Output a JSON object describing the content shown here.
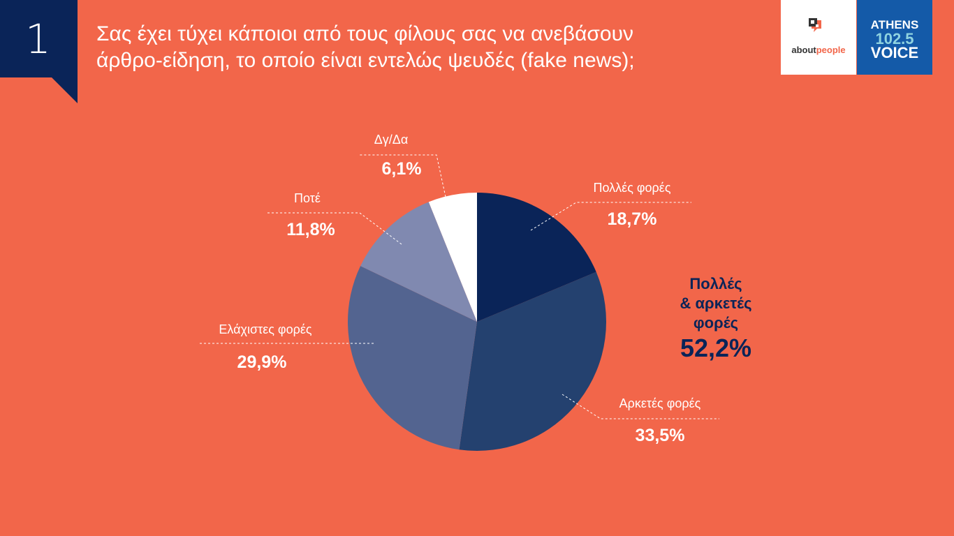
{
  "header": {
    "number": "1",
    "title_line1": "Σας έχει τύχει κάποιοι από τους φίλους σας να ανεβάσουν",
    "title_line2": "άρθρο-είδηση, το οποίο είναι εντελώς ψευδές (fake news);"
  },
  "logos": {
    "aboutpeople_a": "about",
    "aboutpeople_b": "people",
    "athens": "ATHENS",
    "freq": "102.5",
    "voice": "VOICE"
  },
  "chart_data": {
    "type": "pie",
    "title": "Σας έχει τύχει κάποιοι από τους φίλους σας να ανεβάσουν άρθρο-είδηση, το οποίο είναι εντελώς ψευδές (fake news);",
    "start": "top",
    "direction": "clockwise",
    "slices": [
      {
        "label": "Πολλές φορές",
        "value": 18.7,
        "text": "18,7%",
        "color": "#0a2458"
      },
      {
        "label": "Αρκετές φορές",
        "value": 33.5,
        "text": "33,5%",
        "color": "#24416f"
      },
      {
        "label": "Ελάχιστες φορές",
        "value": 29.9,
        "text": "29,9%",
        "color": "#536490"
      },
      {
        "label": "Ποτέ",
        "value": 11.8,
        "text": "11,8%",
        "color": "#8089b0"
      },
      {
        "label": "Δγ/Δα",
        "value": 6.1,
        "text": "6,1%",
        "color": "#ffffff"
      }
    ],
    "annotation": {
      "line1": "Πολλές",
      "line2": "& αρκετές φορές",
      "value": "52,2%"
    }
  }
}
